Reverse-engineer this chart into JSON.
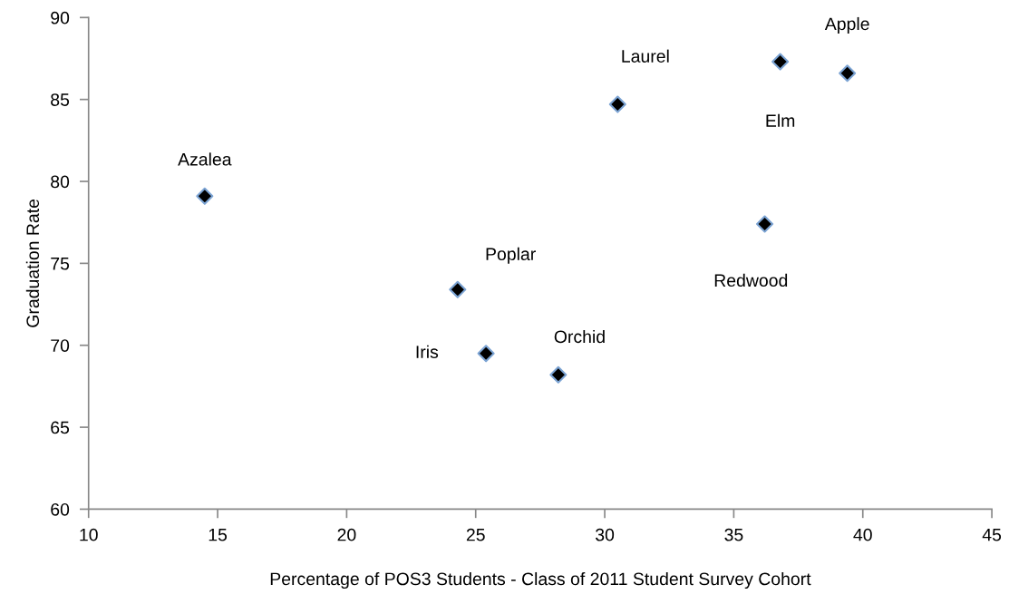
{
  "chart_data": {
    "type": "scatter",
    "xlabel": "Percentage of POS3 Students - Class of 2011 Student Survey Cohort",
    "ylabel": "Graduation Rate",
    "x": [
      14.5,
      24.3,
      25.4,
      28.2,
      30.5,
      36.8,
      39.4,
      36.2
    ],
    "series": [
      {
        "color": "#000000",
        "values": [
          79.1,
          73.4,
          69.5,
          68.2,
          84.7,
          87.3,
          86.6,
          77.4
        ]
      }
    ],
    "marker": "diamond",
    "grid": false,
    "xlim": [
      10,
      45
    ],
    "xticks": [
      10,
      15,
      20,
      25,
      30,
      35,
      40,
      45
    ],
    "ylim": [
      60,
      90
    ],
    "yticks": [
      60,
      65,
      70,
      75,
      80,
      85,
      90
    ],
    "annotations": [
      {
        "text": "Azalea",
        "x": 14.5,
        "y": 79.1
      },
      {
        "text": "Poplar",
        "x": 24.3,
        "y": 73.4
      },
      {
        "text": "Iris",
        "x": 25.4,
        "y": 69.5
      },
      {
        "text": "Orchid",
        "x": 28.2,
        "y": 68.2
      },
      {
        "text": "Laurel",
        "x": 30.5,
        "y": 84.7
      },
      {
        "text": "Elm",
        "x": 36.8,
        "y": 87.3
      },
      {
        "text": "Apple",
        "x": 39.4,
        "y": 86.6
      },
      {
        "text": "Redwood",
        "x": 36.2,
        "y": 77.4
      }
    ]
  }
}
